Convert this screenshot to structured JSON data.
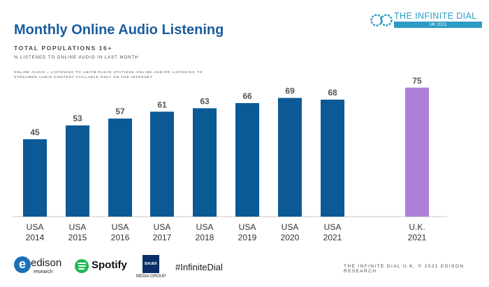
{
  "header": {
    "title": "Monthly Online Audio Listening",
    "subtitle": "TOTAL POPULATIONS 16+",
    "measure": "% LISTENED TO ONLINE AUDIO IN LAST MONTH",
    "definition": "Online Audio = Listening to AM/FM radio stations online and/or listening to streamed audio content available only on the internet"
  },
  "brand": {
    "name": "THE INFINITE DIAL",
    "tag": "UK 2021",
    "accent": "#2b9bc4"
  },
  "footer": {
    "logos": {
      "edison": {
        "mark": "e",
        "name": "edison",
        "sub": "research"
      },
      "spotify": {
        "name": "Spotify"
      },
      "bauer": {
        "box": "BAUER",
        "sub": "MEDIA GROUP"
      }
    },
    "hashtag": "#InfiniteDial",
    "credit": "THE INFINITE DIAL U.K. © 2021 EDISON RESEARCH"
  },
  "chart_data": {
    "type": "bar",
    "categories": [
      "USA 2014",
      "USA 2015",
      "USA 2016",
      "USA 2017",
      "USA 2018",
      "USA 2019",
      "USA 2020",
      "USA 2021",
      "U.K. 2021"
    ],
    "values": [
      45,
      53,
      57,
      61,
      63,
      66,
      69,
      68,
      75
    ],
    "series_colors": [
      "#0b5a96",
      "#0b5a96",
      "#0b5a96",
      "#0b5a96",
      "#0b5a96",
      "#0b5a96",
      "#0b5a96",
      "#0b5a96",
      "#ad7fd6"
    ],
    "ylim": [
      0,
      100
    ],
    "grid": false,
    "data_labels": true,
    "colors": {
      "axis": "#c8c8c8",
      "label": "#555555",
      "category": "#333333"
    }
  }
}
